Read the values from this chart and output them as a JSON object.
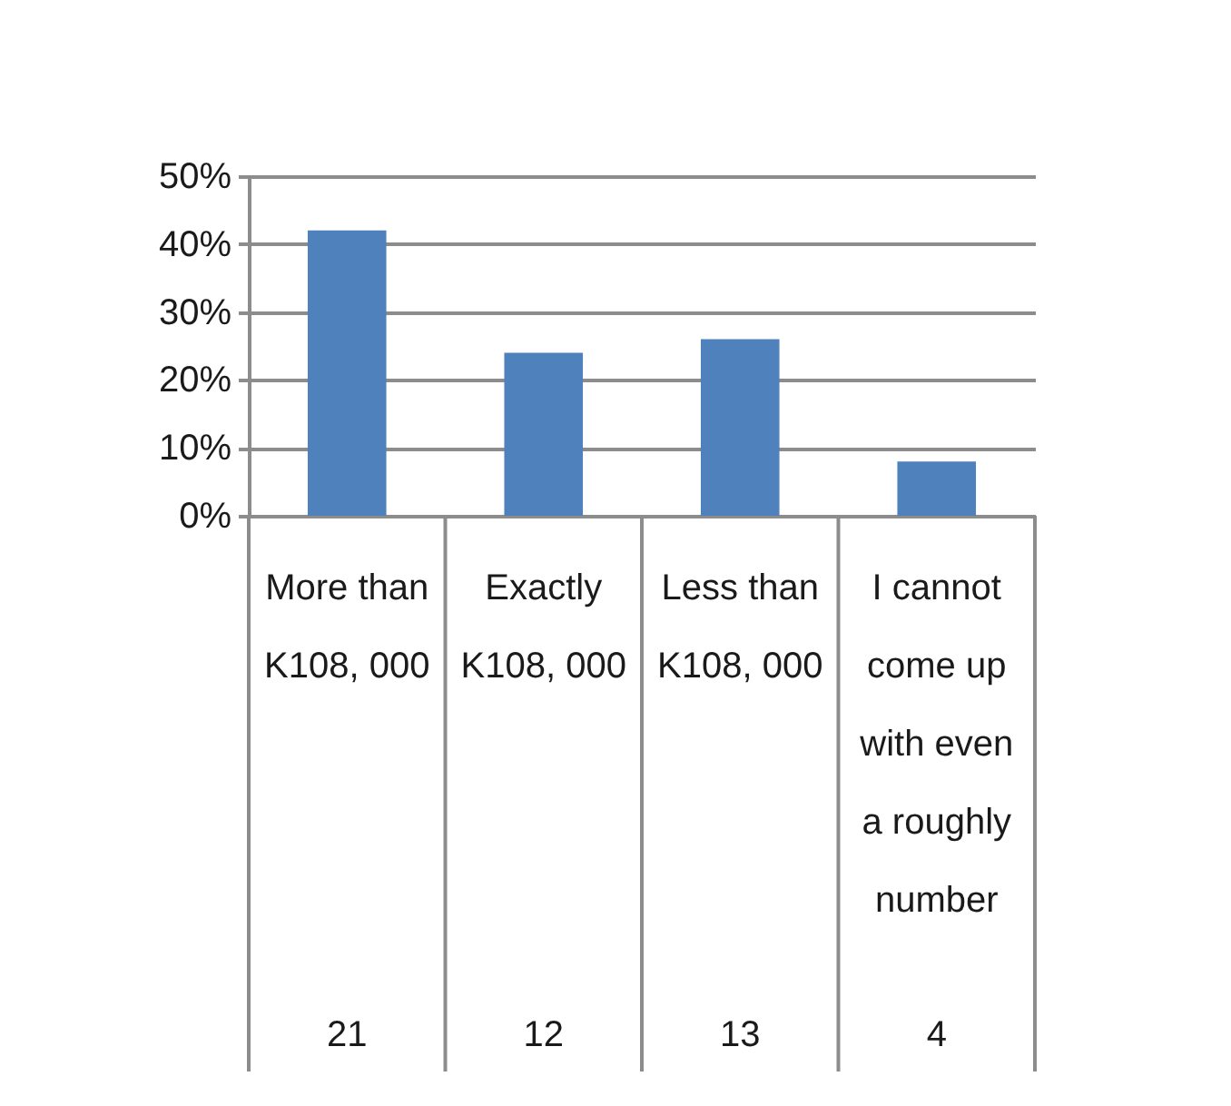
{
  "chart_data": {
    "type": "bar",
    "categories": [
      "More than K108, 000",
      "Exactly K108, 000",
      "Less than K108, 000",
      "I cannot come up with even a roughly number"
    ],
    "values": [
      42,
      24,
      26,
      8
    ],
    "color": "#4f81bd",
    "ylim": [
      0,
      50
    ],
    "yticks": [
      {
        "value": 0,
        "label": "0%"
      },
      {
        "value": 10,
        "label": "10%"
      },
      {
        "value": 20,
        "label": "20%"
      },
      {
        "value": 30,
        "label": "30%"
      },
      {
        "value": 40,
        "label": "40%"
      },
      {
        "value": 50,
        "label": "50%"
      }
    ],
    "grid": "y",
    "annotations": [
      "21",
      "12",
      "13",
      "4"
    ]
  }
}
